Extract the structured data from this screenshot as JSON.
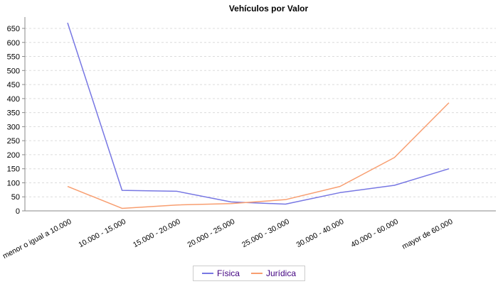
{
  "chart_data": {
    "type": "line",
    "title": "Vehículos por Valor",
    "categories": [
      "menor o igual a 10.000",
      "10.000 - 15.000",
      "15.000 - 20.000",
      "20.000 - 25.000",
      "25.000 - 30.000",
      "30.000 - 40.000",
      "40.000 - 60.000",
      "mayor de 60.000"
    ],
    "series": [
      {
        "name": "Física",
        "color": "#7777e3",
        "values": [
          670,
          73,
          70,
          32,
          24,
          65,
          91,
          150
        ]
      },
      {
        "name": "Jurídica",
        "color": "#f89e70",
        "values": [
          87,
          9,
          21,
          26,
          40,
          87,
          190,
          385
        ]
      }
    ],
    "xlabel": "",
    "ylabel": "",
    "ylim": [
      0,
      650
    ],
    "y_ticks": [
      0,
      50,
      100,
      150,
      200,
      250,
      300,
      350,
      400,
      450,
      500,
      550,
      600,
      650
    ],
    "grid": "horizontal-dashed",
    "legend_position": "bottom-center",
    "colors": {
      "grid": "#dcdcdc",
      "axis": "#888888",
      "tick_text": "#000000",
      "legend_text": "#400080",
      "legend_border": "#cccccc",
      "background": "#ffffff",
      "title_text": "#000000"
    }
  }
}
